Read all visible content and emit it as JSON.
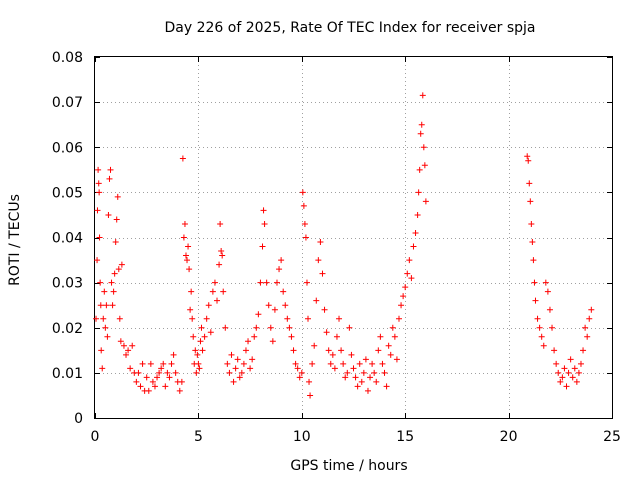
{
  "chart_data": {
    "type": "scatter",
    "title": "Day 226 of 2025, Rate Of TEC Index for receiver spja",
    "xlabel": "GPS time / hours",
    "ylabel": "ROTI / TECUs",
    "xlim": [
      0,
      25
    ],
    "ylim": [
      0,
      0.08
    ],
    "x_ticks": [
      0,
      5,
      10,
      15,
      20,
      25
    ],
    "x_tick_labels": [
      "0",
      "5",
      "10",
      "15",
      "20",
      "25"
    ],
    "y_ticks": [
      0,
      0.01,
      0.02,
      0.03,
      0.04,
      0.05,
      0.06,
      0.07,
      0.08
    ],
    "y_tick_labels": [
      "0",
      "0.01",
      "0.02",
      "0.03",
      "0.04",
      "0.05",
      "0.06",
      "0.07",
      "0.08"
    ],
    "grid": true,
    "marker": "+",
    "color": "#ff0000",
    "series": [
      {
        "name": "ROTI",
        "points": [
          [
            0.05,
            0.022
          ],
          [
            0.1,
            0.035
          ],
          [
            0.12,
            0.046
          ],
          [
            0.15,
            0.055
          ],
          [
            0.18,
            0.052
          ],
          [
            0.2,
            0.05
          ],
          [
            0.22,
            0.04
          ],
          [
            0.25,
            0.03
          ],
          [
            0.28,
            0.025
          ],
          [
            0.3,
            0.015
          ],
          [
            0.35,
            0.011
          ],
          [
            0.4,
            0.022
          ],
          [
            0.45,
            0.028
          ],
          [
            0.5,
            0.02
          ],
          [
            0.55,
            0.025
          ],
          [
            0.6,
            0.018
          ],
          [
            0.65,
            0.045
          ],
          [
            0.7,
            0.053
          ],
          [
            0.75,
            0.055
          ],
          [
            0.8,
            0.03
          ],
          [
            0.85,
            0.025
          ],
          [
            0.9,
            0.028
          ],
          [
            0.95,
            0.032
          ],
          [
            1.0,
            0.039
          ],
          [
            1.05,
            0.044
          ],
          [
            1.1,
            0.049
          ],
          [
            1.15,
            0.033
          ],
          [
            1.2,
            0.022
          ],
          [
            1.25,
            0.017
          ],
          [
            1.3,
            0.034
          ],
          [
            1.4,
            0.016
          ],
          [
            1.5,
            0.014
          ],
          [
            1.6,
            0.015
          ],
          [
            1.7,
            0.011
          ],
          [
            1.8,
            0.016
          ],
          [
            1.9,
            0.01
          ],
          [
            2.0,
            0.008
          ],
          [
            2.1,
            0.01
          ],
          [
            2.2,
            0.007
          ],
          [
            2.3,
            0.012
          ],
          [
            2.4,
            0.006
          ],
          [
            2.5,
            0.009
          ],
          [
            2.6,
            0.006
          ],
          [
            2.7,
            0.012
          ],
          [
            2.8,
            0.008
          ],
          [
            2.9,
            0.007
          ],
          [
            3.0,
            0.009
          ],
          [
            3.1,
            0.01
          ],
          [
            3.2,
            0.011
          ],
          [
            3.3,
            0.012
          ],
          [
            3.4,
            0.007
          ],
          [
            3.5,
            0.01
          ],
          [
            3.6,
            0.009
          ],
          [
            3.7,
            0.012
          ],
          [
            3.8,
            0.014
          ],
          [
            3.9,
            0.01
          ],
          [
            4.0,
            0.008
          ],
          [
            4.1,
            0.006
          ],
          [
            4.2,
            0.008
          ],
          [
            4.25,
            0.0575
          ],
          [
            4.3,
            0.04
          ],
          [
            4.35,
            0.043
          ],
          [
            4.4,
            0.036
          ],
          [
            4.45,
            0.035
          ],
          [
            4.5,
            0.038
          ],
          [
            4.55,
            0.033
          ],
          [
            4.6,
            0.024
          ],
          [
            4.65,
            0.028
          ],
          [
            4.7,
            0.022
          ],
          [
            4.75,
            0.018
          ],
          [
            4.8,
            0.012
          ],
          [
            4.85,
            0.015
          ],
          [
            4.9,
            0.01
          ],
          [
            4.95,
            0.014
          ],
          [
            5.0,
            0.012
          ],
          [
            5.05,
            0.011
          ],
          [
            5.1,
            0.017
          ],
          [
            5.15,
            0.02
          ],
          [
            5.2,
            0.015
          ],
          [
            5.3,
            0.018
          ],
          [
            5.4,
            0.022
          ],
          [
            5.5,
            0.025
          ],
          [
            5.6,
            0.019
          ],
          [
            5.7,
            0.028
          ],
          [
            5.8,
            0.03
          ],
          [
            5.9,
            0.026
          ],
          [
            6.0,
            0.034
          ],
          [
            6.05,
            0.043
          ],
          [
            6.1,
            0.037
          ],
          [
            6.15,
            0.036
          ],
          [
            6.2,
            0.028
          ],
          [
            6.3,
            0.02
          ],
          [
            6.4,
            0.012
          ],
          [
            6.5,
            0.01
          ],
          [
            6.6,
            0.014
          ],
          [
            6.7,
            0.008
          ],
          [
            6.8,
            0.011
          ],
          [
            6.9,
            0.013
          ],
          [
            7.0,
            0.009
          ],
          [
            7.1,
            0.01
          ],
          [
            7.2,
            0.012
          ],
          [
            7.3,
            0.015
          ],
          [
            7.4,
            0.017
          ],
          [
            7.5,
            0.011
          ],
          [
            7.6,
            0.013
          ],
          [
            7.7,
            0.018
          ],
          [
            7.8,
            0.02
          ],
          [
            7.9,
            0.023
          ],
          [
            8.0,
            0.03
          ],
          [
            8.1,
            0.038
          ],
          [
            8.15,
            0.046
          ],
          [
            8.2,
            0.043
          ],
          [
            8.3,
            0.03
          ],
          [
            8.4,
            0.025
          ],
          [
            8.5,
            0.02
          ],
          [
            8.6,
            0.017
          ],
          [
            8.7,
            0.024
          ],
          [
            8.8,
            0.03
          ],
          [
            8.9,
            0.033
          ],
          [
            9.0,
            0.035
          ],
          [
            9.1,
            0.028
          ],
          [
            9.2,
            0.025
          ],
          [
            9.3,
            0.022
          ],
          [
            9.4,
            0.02
          ],
          [
            9.5,
            0.018
          ],
          [
            9.6,
            0.015
          ],
          [
            9.7,
            0.012
          ],
          [
            9.8,
            0.011
          ],
          [
            9.9,
            0.009
          ],
          [
            10.0,
            0.01
          ],
          [
            10.05,
            0.05
          ],
          [
            10.1,
            0.047
          ],
          [
            10.15,
            0.043
          ],
          [
            10.2,
            0.04
          ],
          [
            10.25,
            0.03
          ],
          [
            10.3,
            0.022
          ],
          [
            10.35,
            0.008
          ],
          [
            10.4,
            0.005
          ],
          [
            10.5,
            0.012
          ],
          [
            10.6,
            0.016
          ],
          [
            10.7,
            0.026
          ],
          [
            10.8,
            0.035
          ],
          [
            10.9,
            0.039
          ],
          [
            11.0,
            0.032
          ],
          [
            11.1,
            0.024
          ],
          [
            11.2,
            0.019
          ],
          [
            11.3,
            0.015
          ],
          [
            11.4,
            0.012
          ],
          [
            11.5,
            0.014
          ],
          [
            11.6,
            0.011
          ],
          [
            11.7,
            0.018
          ],
          [
            11.8,
            0.022
          ],
          [
            11.9,
            0.015
          ],
          [
            12.0,
            0.012
          ],
          [
            12.1,
            0.009
          ],
          [
            12.2,
            0.01
          ],
          [
            12.3,
            0.02
          ],
          [
            12.4,
            0.014
          ],
          [
            12.5,
            0.011
          ],
          [
            12.6,
            0.009
          ],
          [
            12.7,
            0.007
          ],
          [
            12.8,
            0.012
          ],
          [
            12.9,
            0.008
          ],
          [
            13.0,
            0.01
          ],
          [
            13.1,
            0.013
          ],
          [
            13.2,
            0.006
          ],
          [
            13.3,
            0.009
          ],
          [
            13.4,
            0.012
          ],
          [
            13.5,
            0.01
          ],
          [
            13.6,
            0.008
          ],
          [
            13.7,
            0.015
          ],
          [
            13.8,
            0.018
          ],
          [
            13.9,
            0.012
          ],
          [
            14.0,
            0.01
          ],
          [
            14.1,
            0.007
          ],
          [
            14.2,
            0.016
          ],
          [
            14.3,
            0.014
          ],
          [
            14.4,
            0.02
          ],
          [
            14.5,
            0.018
          ],
          [
            14.6,
            0.013
          ],
          [
            14.7,
            0.022
          ],
          [
            14.8,
            0.025
          ],
          [
            14.9,
            0.027
          ],
          [
            15.0,
            0.029
          ],
          [
            15.1,
            0.032
          ],
          [
            15.2,
            0.035
          ],
          [
            15.3,
            0.031
          ],
          [
            15.4,
            0.038
          ],
          [
            15.5,
            0.041
          ],
          [
            15.6,
            0.045
          ],
          [
            15.65,
            0.05
          ],
          [
            15.7,
            0.055
          ],
          [
            15.75,
            0.063
          ],
          [
            15.8,
            0.065
          ],
          [
            15.85,
            0.0715
          ],
          [
            15.9,
            0.06
          ],
          [
            15.95,
            0.056
          ],
          [
            16.0,
            0.048
          ],
          [
            20.9,
            0.058
          ],
          [
            20.95,
            0.057
          ],
          [
            21.0,
            0.052
          ],
          [
            21.05,
            0.048
          ],
          [
            21.1,
            0.043
          ],
          [
            21.15,
            0.039
          ],
          [
            21.2,
            0.035
          ],
          [
            21.25,
            0.03
          ],
          [
            21.3,
            0.026
          ],
          [
            21.4,
            0.022
          ],
          [
            21.5,
            0.02
          ],
          [
            21.6,
            0.018
          ],
          [
            21.7,
            0.016
          ],
          [
            21.8,
            0.03
          ],
          [
            21.9,
            0.028
          ],
          [
            22.0,
            0.024
          ],
          [
            22.1,
            0.02
          ],
          [
            22.2,
            0.015
          ],
          [
            22.3,
            0.012
          ],
          [
            22.4,
            0.01
          ],
          [
            22.5,
            0.008
          ],
          [
            22.6,
            0.009
          ],
          [
            22.7,
            0.011
          ],
          [
            22.8,
            0.007
          ],
          [
            22.9,
            0.01
          ],
          [
            23.0,
            0.013
          ],
          [
            23.1,
            0.009
          ],
          [
            23.2,
            0.011
          ],
          [
            23.3,
            0.008
          ],
          [
            23.4,
            0.01
          ],
          [
            23.5,
            0.012
          ],
          [
            23.6,
            0.015
          ],
          [
            23.7,
            0.02
          ],
          [
            23.8,
            0.018
          ],
          [
            23.9,
            0.022
          ],
          [
            24.0,
            0.024
          ]
        ]
      }
    ]
  }
}
